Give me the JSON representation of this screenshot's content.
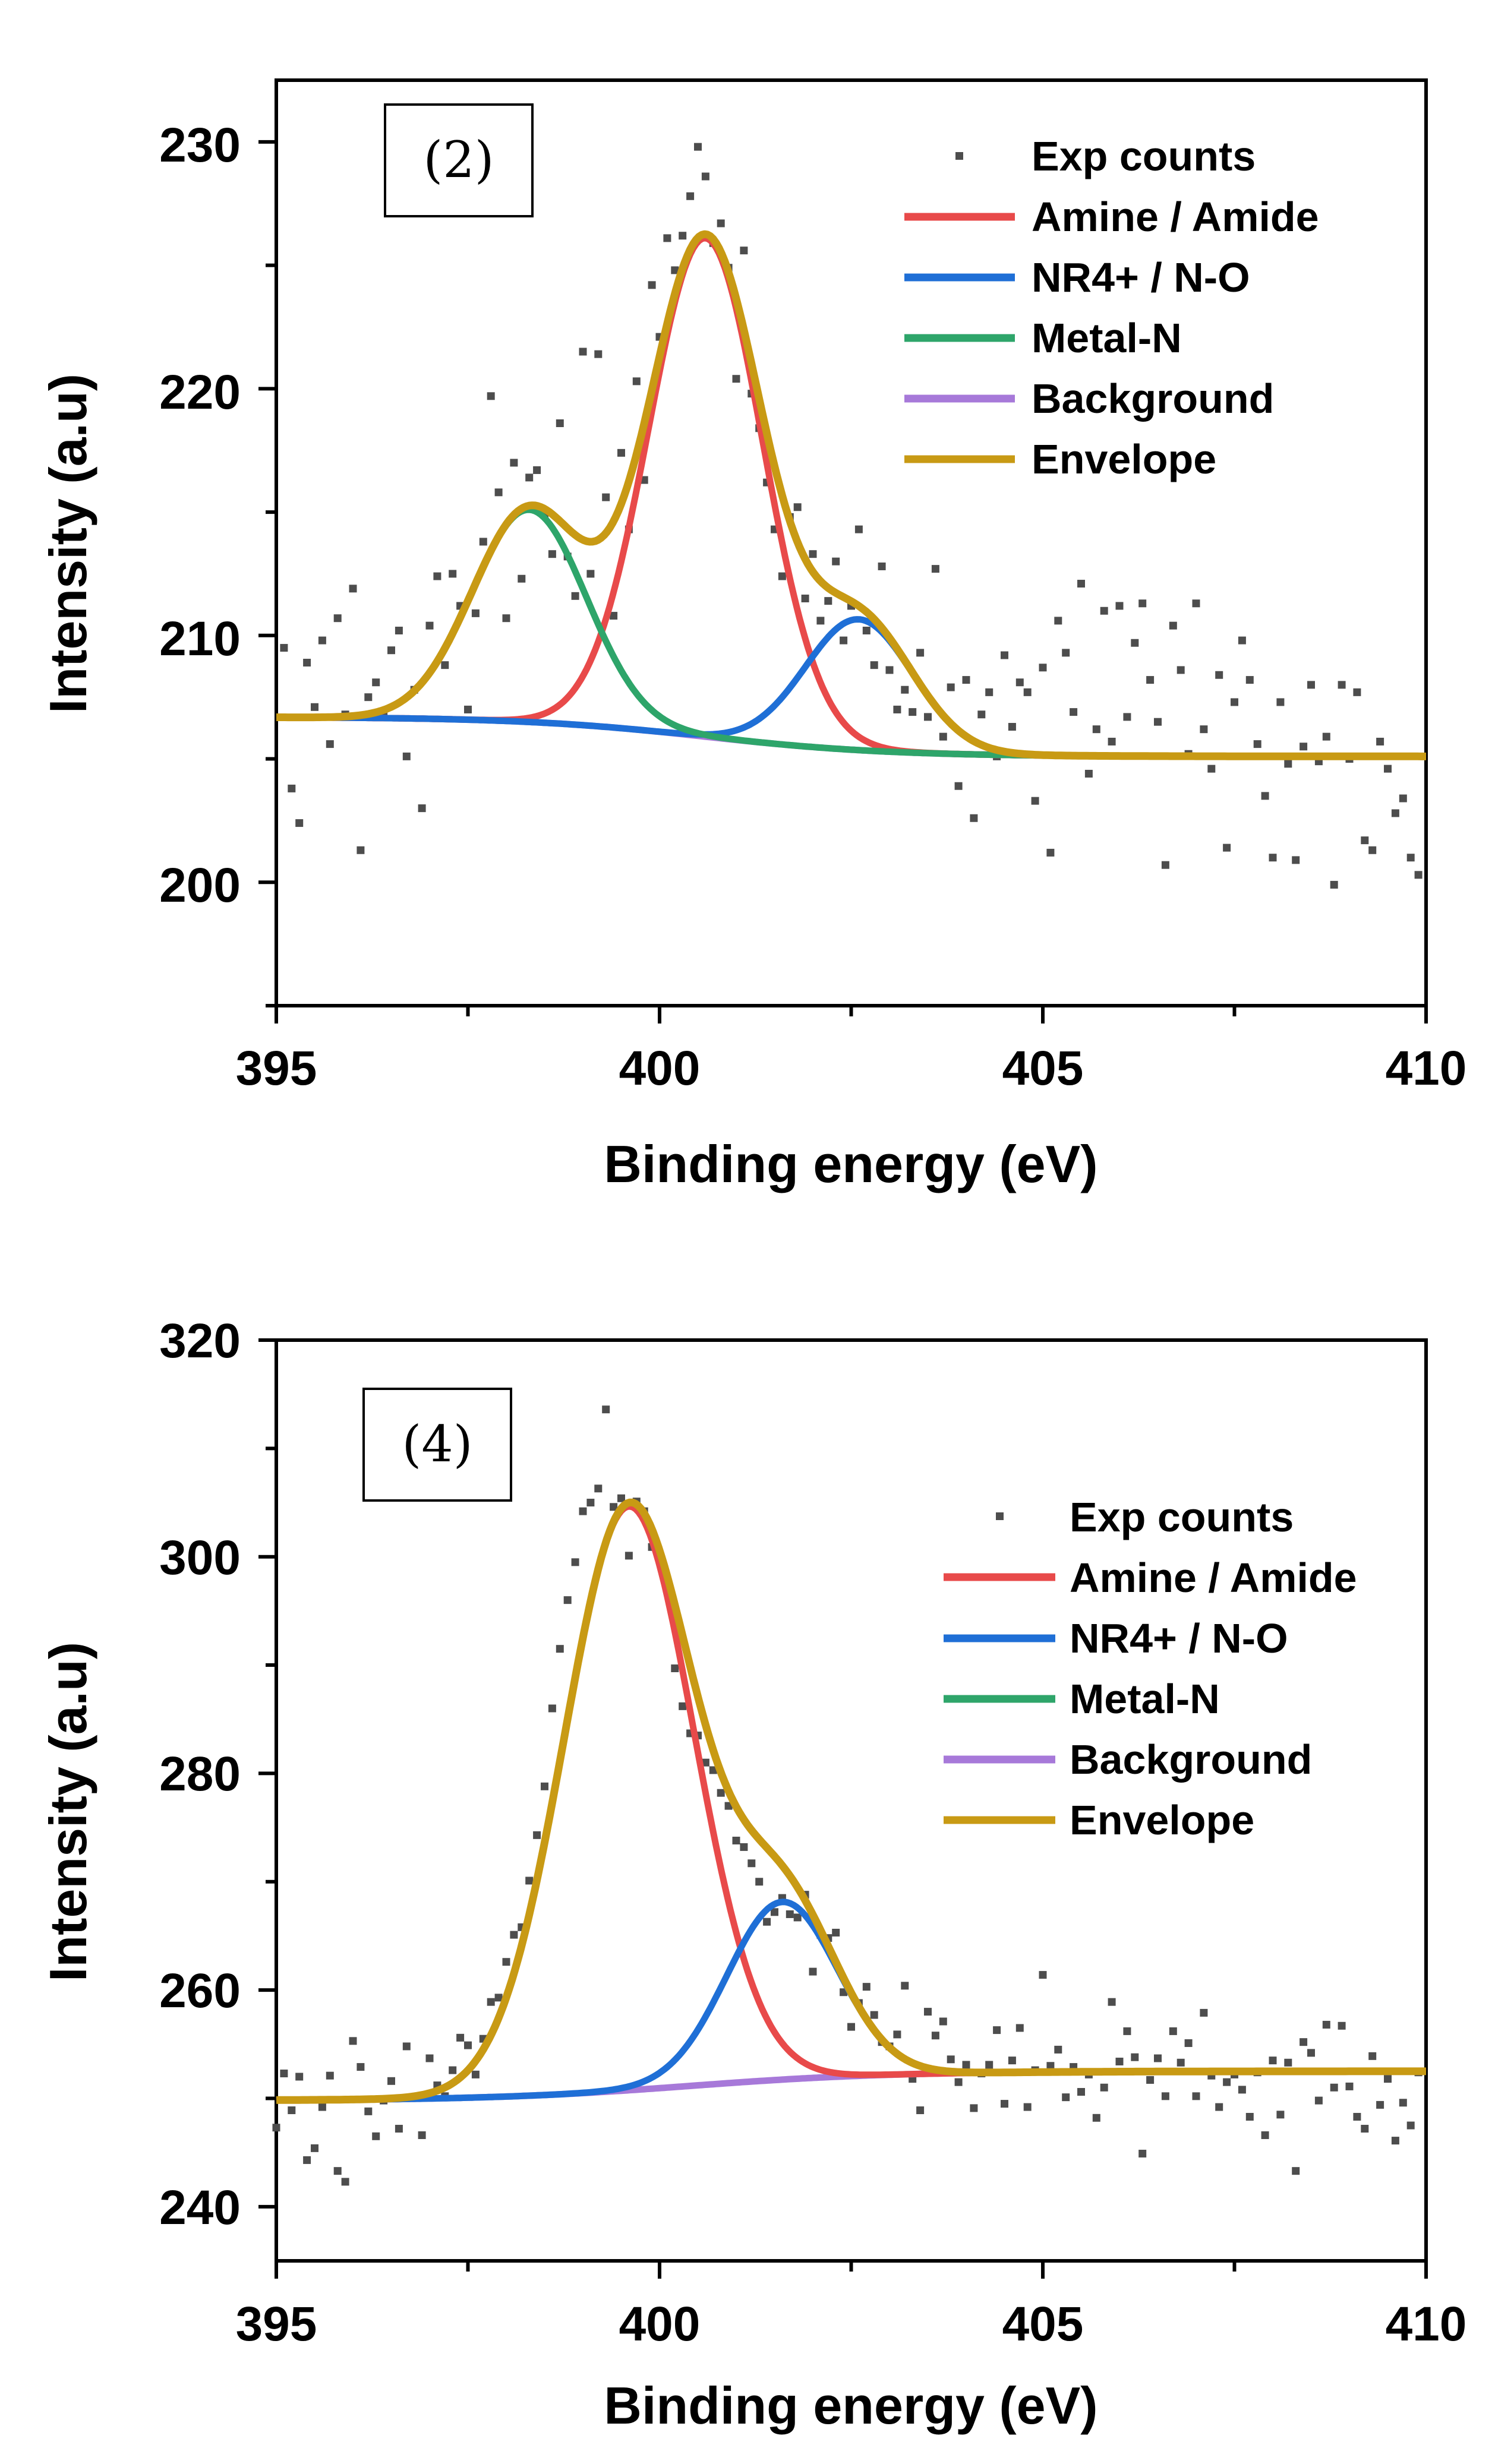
{
  "chart_data": [
    {
      "type": "scatter",
      "panel_label": "(2)",
      "xlabel": "Binding energy (eV)",
      "ylabel": "Intensity (a.u)",
      "xlim": [
        395,
        410
      ],
      "ylim": [
        195,
        232.5
      ],
      "xticks": [
        395,
        400,
        405,
        410
      ],
      "yticks": [
        200,
        210,
        220,
        230
      ],
      "xticks_text": [
        "395",
        "400",
        "405",
        "410"
      ],
      "yticks_text": [
        "200",
        "210",
        "220",
        "230"
      ],
      "legend_position": "top-right",
      "legend": [
        {
          "label": "Exp counts",
          "color": "#4d4d4d",
          "kind": "marker"
        },
        {
          "label": "Amine / Amide",
          "color": "#e84a4a",
          "kind": "line"
        },
        {
          "label": "NR4+ / N-O",
          "color": "#1f6fd6",
          "kind": "line"
        },
        {
          "label": "Metal-N",
          "color": "#2ea56a",
          "kind": "line"
        },
        {
          "label": "Background",
          "color": "#a779d9",
          "kind": "line"
        },
        {
          "label": "Envelope",
          "color": "#c89a14",
          "kind": "line"
        }
      ],
      "background": {
        "low_x": 395,
        "high_x": 410,
        "low_y": 206.7,
        "high_y": 205.1,
        "mid": 400.6,
        "width": 1.2
      },
      "peaks": [
        {
          "name": "Amine / Amide",
          "center": 400.6,
          "height": 20.2,
          "fwhm": 1.75
        },
        {
          "name": "NR4+ / N-O",
          "center": 402.6,
          "height": 5.3,
          "fwhm": 1.65
        },
        {
          "name": "Metal-N",
          "center": 398.3,
          "height": 8.6,
          "fwhm": 1.75
        }
      ],
      "exp_counts": {
        "x": [
          395.1,
          395.2,
          395.3,
          395.4,
          395.5,
          395.6,
          395.7,
          395.8,
          395.9,
          396.0,
          396.1,
          396.2,
          396.3,
          396.4,
          396.5,
          396.6,
          396.7,
          396.8,
          396.9,
          397.0,
          397.1,
          397.2,
          397.3,
          397.4,
          397.5,
          397.6,
          397.7,
          397.8,
          397.9,
          398.0,
          398.1,
          398.2,
          398.3,
          398.4,
          398.5,
          398.6,
          398.7,
          398.8,
          398.9,
          399.0,
          399.1,
          399.2,
          399.3,
          399.4,
          399.5,
          399.6,
          399.7,
          399.8,
          399.9,
          400.0,
          400.1,
          400.2,
          400.3,
          400.4,
          400.5,
          400.6,
          400.7,
          400.8,
          400.9,
          401.0,
          401.1,
          401.2,
          401.3,
          401.4,
          401.5,
          401.6,
          401.7,
          401.8,
          401.9,
          402.0,
          402.1,
          402.2,
          402.3,
          402.4,
          402.5,
          402.6,
          402.7,
          402.8,
          402.9,
          403.0,
          403.1,
          403.2,
          403.3,
          403.4,
          403.5,
          403.6,
          403.7,
          403.8,
          403.9,
          404.0,
          404.1,
          404.2,
          404.3,
          404.4,
          404.5,
          404.6,
          404.7,
          404.8,
          404.9,
          405.0,
          405.1,
          405.2,
          405.3,
          405.4,
          405.5,
          405.6,
          405.7,
          405.8,
          405.9,
          406.0,
          406.1,
          406.2,
          406.3,
          406.4,
          406.5,
          406.6,
          406.7,
          406.8,
          406.9,
          407.0,
          407.1,
          407.2,
          407.3,
          407.4,
          407.5,
          407.6,
          407.7,
          407.8,
          407.9,
          408.0,
          408.1,
          408.2,
          408.3,
          408.4,
          408.5,
          408.6,
          408.7,
          408.8,
          408.9,
          409.0,
          409.1,
          409.2,
          409.3,
          409.4,
          409.5,
          409.6,
          409.7,
          409.8,
          409.9
        ],
        "y": [
          209.5,
          203.8,
          202.4,
          208.9,
          207.1,
          209.8,
          205.6,
          210.7,
          206.8,
          211.9,
          201.3,
          207.5,
          208.1,
          206.9,
          209.4,
          210.2,
          205.1,
          207.8,
          203.0,
          210.4,
          212.4,
          208.8,
          212.5,
          211.2,
          207.0,
          210.9,
          213.8,
          219.7,
          215.8,
          210.7,
          217.0,
          212.3,
          216.4,
          216.7,
          214.9,
          213.3,
          218.6,
          213.2,
          211.6,
          221.5,
          212.5,
          221.4,
          215.6,
          210.8,
          217.4,
          214.3,
          220.3,
          216.3,
          224.2,
          222.1,
          226.1,
          224.8,
          226.2,
          227.8,
          229.8,
          228.6,
          225.9,
          226.7,
          224.9,
          220.4,
          225.6,
          219.8,
          218.4,
          216.2,
          214.3,
          212.4,
          214.8,
          215.2,
          211.5,
          213.3,
          210.6,
          211.4,
          213.0,
          209.8,
          211.2,
          214.3,
          210.2,
          208.8,
          212.8,
          208.6,
          207.0,
          207.8,
          206.9,
          209.3,
          206.7,
          212.7,
          205.9,
          207.9,
          203.9,
          208.2,
          202.6,
          206.8,
          207.7,
          205.1,
          209.2,
          206.3,
          208.1,
          207.7,
          203.3,
          208.7,
          201.2,
          210.6,
          209.3,
          206.9,
          212.1,
          204.4,
          206.2,
          211.0,
          205.7,
          211.2,
          206.7,
          209.7,
          211.3,
          208.2,
          206.5,
          200.7,
          210.4,
          208.6,
          205.2,
          211.3,
          206.2,
          204.6,
          208.4,
          201.4,
          207.3,
          209.8,
          208.2,
          205.6,
          203.5,
          201.0,
          207.3,
          204.8,
          200.9,
          205.5,
          208.0,
          204.9,
          205.9,
          199.9,
          208.0,
          205.0,
          207.7,
          201.7,
          201.3,
          205.7,
          204.6,
          202.8,
          203.4,
          201.0,
          200.3
        ]
      }
    },
    {
      "type": "scatter",
      "panel_label": "(4)",
      "xlabel": "Binding energy (eV)",
      "ylabel": "Intensity (a.u)",
      "xlim": [
        395,
        410
      ],
      "ylim": [
        235,
        320
      ],
      "xticks": [
        395,
        400,
        405,
        410
      ],
      "yticks": [
        240,
        260,
        280,
        300,
        320
      ],
      "xticks_text": [
        "395",
        "400",
        "405",
        "410"
      ],
      "yticks_text": [
        "240",
        "260",
        "280",
        "300",
        "320"
      ],
      "legend_position": "top-right",
      "legend": [
        {
          "label": "Exp counts",
          "color": "#4d4d4d",
          "kind": "marker"
        },
        {
          "label": "Amine / Amide",
          "color": "#e84a4a",
          "kind": "line"
        },
        {
          "label": "NR4+ / N-O",
          "color": "#1f6fd6",
          "kind": "line"
        },
        {
          "label": "Metal-N",
          "color": "#2ea56a",
          "kind": "line"
        },
        {
          "label": "Background",
          "color": "#a779d9",
          "kind": "line"
        },
        {
          "label": "Envelope",
          "color": "#c89a14",
          "kind": "line"
        }
      ],
      "background": {
        "low_x": 395,
        "high_x": 410,
        "low_y": 249.8,
        "high_y": 252.5,
        "mid": 400.4,
        "width": 1.3
      },
      "peaks": [
        {
          "name": "Amine / Amide",
          "center": 399.6,
          "height": 53.9,
          "fwhm": 2.0
        },
        {
          "name": "NR4+ / N-O",
          "center": 401.6,
          "height": 16.4,
          "fwhm": 1.7
        }
      ],
      "exp_counts": {
        "x": [
          395.0,
          395.1,
          395.2,
          395.3,
          395.4,
          395.5,
          395.6,
          395.7,
          395.8,
          395.9,
          396.0,
          396.1,
          396.2,
          396.3,
          396.4,
          396.5,
          396.6,
          396.7,
          396.8,
          396.9,
          397.0,
          397.1,
          397.2,
          397.3,
          397.4,
          397.5,
          397.6,
          397.7,
          397.8,
          397.9,
          398.0,
          398.1,
          398.2,
          398.3,
          398.4,
          398.5,
          398.6,
          398.7,
          398.8,
          398.9,
          399.0,
          399.1,
          399.2,
          399.3,
          399.4,
          399.5,
          399.6,
          399.7,
          399.8,
          399.9,
          400.0,
          400.1,
          400.2,
          400.3,
          400.4,
          400.5,
          400.6,
          400.7,
          400.8,
          400.9,
          401.0,
          401.1,
          401.2,
          401.3,
          401.4,
          401.5,
          401.6,
          401.7,
          401.8,
          401.9,
          402.0,
          402.1,
          402.2,
          402.3,
          402.4,
          402.5,
          402.6,
          402.7,
          402.8,
          402.9,
          403.0,
          403.1,
          403.2,
          403.3,
          403.4,
          403.5,
          403.6,
          403.7,
          403.8,
          403.9,
          404.0,
          404.1,
          404.2,
          404.3,
          404.4,
          404.5,
          404.6,
          404.7,
          404.8,
          404.9,
          405.0,
          405.1,
          405.2,
          405.3,
          405.4,
          405.5,
          405.6,
          405.7,
          405.8,
          405.9,
          406.0,
          406.1,
          406.2,
          406.3,
          406.4,
          406.5,
          406.6,
          406.7,
          406.8,
          406.9,
          407.0,
          407.1,
          407.2,
          407.3,
          407.4,
          407.5,
          407.6,
          407.7,
          407.8,
          407.9,
          408.0,
          408.1,
          408.2,
          408.3,
          408.4,
          408.5,
          408.6,
          408.7,
          408.8,
          408.9,
          409.0,
          409.1,
          409.2,
          409.3,
          409.4,
          409.5,
          409.6,
          409.7,
          409.8,
          409.9
        ],
        "y": [
          247.3,
          252.3,
          248.9,
          252.0,
          244.3,
          245.4,
          249.2,
          252.1,
          243.3,
          242.3,
          255.3,
          252.9,
          248.8,
          246.5,
          249.8,
          251.6,
          247.2,
          254.8,
          250.1,
          246.6,
          253.7,
          251.2,
          250.2,
          252.6,
          255.6,
          254.9,
          252.2,
          255.5,
          258.9,
          259.3,
          262.6,
          265.1,
          265.8,
          270.1,
          274.3,
          278.8,
          286.0,
          291.5,
          296.0,
          299.5,
          304.2,
          305.0,
          306.3,
          313.6,
          304.6,
          305.4,
          300.1,
          305.1,
          304.2,
          300.9,
          299.8,
          297.6,
          289.7,
          286.2,
          283.7,
          283.5,
          281.0,
          280.3,
          278.2,
          277.0,
          273.8,
          273.2,
          271.7,
          270.0,
          266.3,
          267.2,
          268.5,
          267.0,
          266.7,
          268.8,
          261.7,
          265.1,
          264.8,
          265.3,
          259.8,
          256.6,
          258.8,
          260.3,
          257.7,
          255.2,
          254.8,
          255.9,
          260.4,
          251.8,
          248.9,
          258.0,
          255.8,
          257.1,
          253.6,
          251.5,
          253.1,
          249.1,
          252.3,
          253.1,
          256.3,
          249.5,
          253.5,
          256.5,
          249.2,
          252.6,
          261.4,
          253.0,
          254.5,
          250.1,
          252.9,
          250.6,
          252.2,
          248.2,
          251.0,
          258.9,
          253.4,
          256.2,
          253.8,
          244.9,
          251.7,
          253.7,
          250.2,
          256.2,
          253.3,
          255.1,
          250.2,
          257.9,
          252.1,
          249.2,
          251.5,
          252.2,
          250.8,
          248.3,
          252.4,
          246.6,
          253.5,
          248.5,
          253.3,
          243.3,
          255.2,
          254.2,
          249.8,
          256.8,
          251.0,
          256.7,
          251.1,
          248.3,
          247.2,
          253.9,
          249.4,
          251.8,
          246.1,
          249.6,
          247.5,
          252.4
        ]
      }
    }
  ]
}
